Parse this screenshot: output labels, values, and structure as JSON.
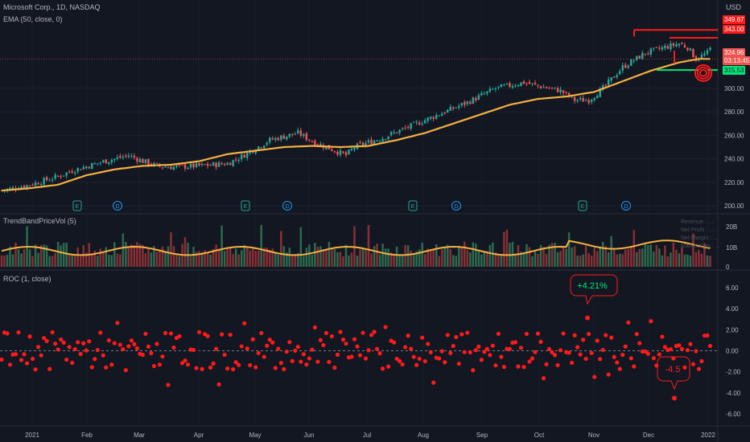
{
  "header": {
    "symbol_title": "Microsoft Corp., 1D, NASDAQ",
    "ema_label": "EMA (50, close, 0)",
    "tbpv_label": "TrendBandPriceVol (5)",
    "roc_label": "ROC (1, close)",
    "currency_label": "USD"
  },
  "price_badges": {
    "high1": "349.67",
    "high2": "343.00",
    "last": "324.96",
    "countdown": "03:13:45",
    "support": "315.53"
  },
  "earnings_markers": [
    "E",
    "D",
    "E",
    "D",
    "E",
    "D",
    "E",
    "D"
  ],
  "info_panel": [
    "Revenue : …",
    "Net Profit : …",
    "Net Margin : …",
    "Market Cap : …"
  ],
  "callouts": {
    "up": "+4.21%",
    "down": "-4.5"
  },
  "colors": {
    "bull": "#26a69a",
    "bear": "#ef5350",
    "ema": "#f5b041",
    "roc": "#ff1a1a",
    "support": "#00e676",
    "resistance": "#ff1a1a"
  },
  "chart_data": {
    "type": "candlestick",
    "x_axis_ticks": [
      "2021",
      "Feb",
      "Mar",
      "Apr",
      "May",
      "Jun",
      "Jul",
      "Aug",
      "Sep",
      "Oct",
      "Nov",
      "Dec",
      "2022"
    ],
    "price_axis": {
      "ticks": [
        200,
        220,
        240,
        260,
        280,
        300
      ],
      "ylim": [
        196,
        356
      ]
    },
    "price_path": [
      [
        0,
        213
      ],
      [
        10,
        218
      ],
      [
        20,
        225
      ],
      [
        25,
        230
      ],
      [
        35,
        237
      ],
      [
        45,
        243
      ],
      [
        50,
        238
      ],
      [
        55,
        234
      ],
      [
        60,
        233
      ],
      [
        70,
        234
      ],
      [
        80,
        236
      ],
      [
        85,
        242
      ],
      [
        95,
        256
      ],
      [
        105,
        262
      ],
      [
        110,
        255
      ],
      [
        118,
        247
      ],
      [
        122,
        243
      ],
      [
        125,
        250
      ],
      [
        135,
        258
      ],
      [
        145,
        268
      ],
      [
        155,
        278
      ],
      [
        165,
        288
      ],
      [
        175,
        300
      ],
      [
        185,
        305
      ],
      [
        190,
        302
      ],
      [
        198,
        298
      ],
      [
        203,
        290
      ],
      [
        208,
        290
      ],
      [
        213,
        300
      ],
      [
        220,
        318
      ],
      [
        228,
        330
      ],
      [
        235,
        335
      ],
      [
        240,
        338
      ],
      [
        243,
        335
      ],
      [
        246,
        325
      ],
      [
        250,
        330
      ],
      [
        252,
        337
      ]
    ],
    "ema_path": [
      [
        0,
        213
      ],
      [
        10,
        215
      ],
      [
        20,
        218
      ],
      [
        30,
        226
      ],
      [
        40,
        231
      ],
      [
        50,
        234
      ],
      [
        60,
        235
      ],
      [
        70,
        238
      ],
      [
        80,
        244
      ],
      [
        90,
        247
      ],
      [
        100,
        250
      ],
      [
        110,
        251
      ],
      [
        120,
        250
      ],
      [
        130,
        251
      ],
      [
        140,
        256
      ],
      [
        150,
        262
      ],
      [
        160,
        270
      ],
      [
        170,
        278
      ],
      [
        180,
        286
      ],
      [
        190,
        291
      ],
      [
        200,
        293
      ],
      [
        210,
        297
      ],
      [
        220,
        306
      ],
      [
        230,
        315
      ],
      [
        240,
        322
      ],
      [
        247,
        325
      ],
      [
        252,
        325
      ]
    ],
    "volume_axis": {
      "ticks": [
        "20B",
        "10B",
        "0"
      ]
    },
    "roc_axis": {
      "ticks": [
        6,
        4,
        2,
        0,
        -2,
        -4,
        -6
      ],
      "ylim": [
        -7,
        7
      ]
    },
    "levels": {
      "resistance_1": 349.67,
      "resistance_2": 343.0,
      "last": 324.96,
      "support": 315.53
    }
  }
}
